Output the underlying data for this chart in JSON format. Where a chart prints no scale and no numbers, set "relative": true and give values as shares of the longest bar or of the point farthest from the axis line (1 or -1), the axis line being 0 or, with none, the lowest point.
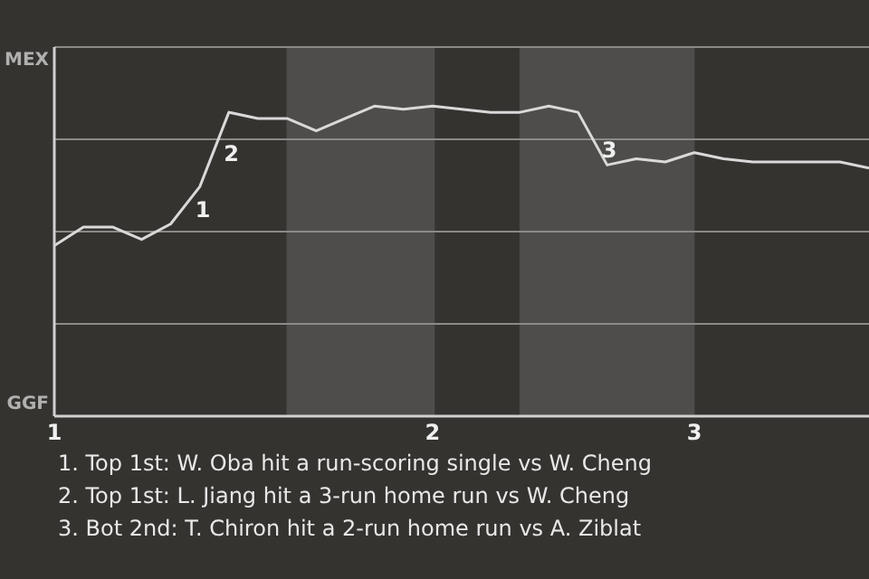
{
  "chart_data": {
    "type": "line",
    "relative": true,
    "categories": [
      "1",
      null,
      null,
      null,
      null,
      null,
      null,
      null,
      null,
      null,
      null,
      null,
      null,
      "2",
      null,
      null,
      null,
      null,
      null,
      null,
      null,
      null,
      "3",
      null,
      null,
      null,
      null,
      null,
      null
    ],
    "series": [
      {
        "color": "#d9d9d9",
        "values": [
          0.55,
          0.61,
          0.61,
          0.57,
          0.62,
          0.74,
          0.98,
          0.96,
          0.96,
          0.92,
          0.96,
          1,
          0.99,
          1,
          0.99,
          0.98,
          0.98,
          1,
          0.98,
          0.81,
          0.83,
          0.82,
          0.85,
          0.83,
          0.82,
          0.82,
          0.82,
          0.82,
          0.8
        ]
      }
    ],
    "grid": "y",
    "marker": "none",
    "line_style": "solid",
    "annotations": [
      "MEX",
      "GGF",
      "1",
      "2",
      "3",
      "1. Top 1st: W. Oba hit a run-scoring single vs W. Cheng",
      "2. Top 1st: L. Jiang hit a 3-run home run vs W. Cheng",
      "3. Bot 2nd: T. Chiron hit a 2-run home run vs A. Ziblat"
    ]
  }
}
